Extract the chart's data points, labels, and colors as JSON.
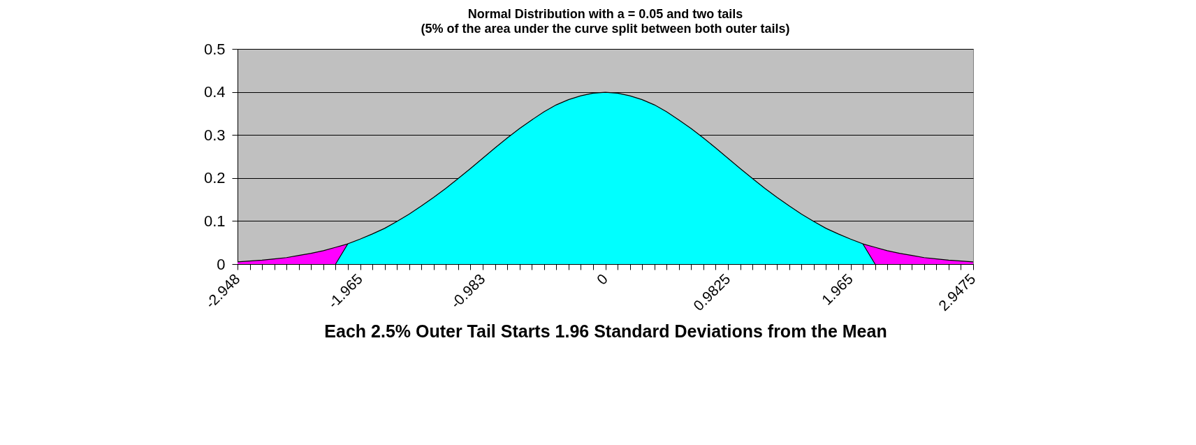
{
  "chart_data": {
    "type": "area",
    "title": "Normal Distribution with a = 0.05 and two tails",
    "subtitle": "(5% of the area under the curve split between both outer tails)",
    "xlabel": "Each 2.5% Outer Tail Starts 1.96 Standard Deviations from the Mean",
    "categories": [
      "-2.948",
      null,
      null,
      null,
      null,
      null,
      null,
      null,
      null,
      null,
      "-1.965",
      null,
      null,
      null,
      null,
      null,
      null,
      null,
      null,
      null,
      "-0.983",
      null,
      null,
      null,
      null,
      null,
      null,
      null,
      null,
      null,
      "0",
      null,
      null,
      null,
      null,
      null,
      null,
      null,
      null,
      null,
      "0.9825",
      null,
      null,
      null,
      null,
      null,
      null,
      null,
      null,
      null,
      "1.965",
      null,
      null,
      null,
      null,
      null,
      null,
      null,
      null,
      null,
      "2.9475"
    ],
    "series": [
      {
        "color": "#ff00ff",
        "values": [
          0.005,
          0.007,
          0.009,
          0.012,
          0.015,
          0.02,
          0.025,
          0.031,
          0.039,
          0.047,
          null,
          null,
          null,
          null,
          null,
          null,
          null,
          null,
          null,
          null,
          null,
          null,
          null,
          null,
          null,
          null,
          null,
          null,
          null,
          null,
          null,
          null,
          null,
          null,
          null,
          null,
          null,
          null,
          null,
          null,
          null,
          null,
          null,
          null,
          null,
          null,
          null,
          null,
          null,
          null,
          null,
          0.047,
          0.039,
          0.031,
          0.025,
          0.02,
          0.015,
          0.012,
          0.009,
          0.007,
          0.005
        ]
      },
      {
        "color": "#00ffff",
        "values": [
          null,
          null,
          null,
          null,
          null,
          null,
          null,
          null,
          0,
          0.047,
          0.058,
          0.07,
          0.083,
          0.099,
          0.116,
          0.135,
          0.155,
          0.176,
          0.199,
          0.222,
          0.246,
          0.27,
          0.293,
          0.315,
          0.335,
          0.354,
          0.37,
          0.382,
          0.391,
          0.397,
          0.399,
          0.397,
          0.391,
          0.382,
          0.37,
          0.354,
          0.335,
          0.315,
          0.293,
          0.27,
          0.246,
          0.222,
          0.199,
          0.176,
          0.155,
          0.135,
          0.116,
          0.099,
          0.083,
          0.07,
          0.058,
          0.047,
          0,
          null,
          null,
          null,
          null,
          null,
          null,
          null,
          null
        ]
      }
    ],
    "ylim": [
      0,
      0.5
    ],
    "yticks": [
      0,
      0.1,
      0.2,
      0.3,
      0.4,
      0.5
    ],
    "grid": "y"
  }
}
